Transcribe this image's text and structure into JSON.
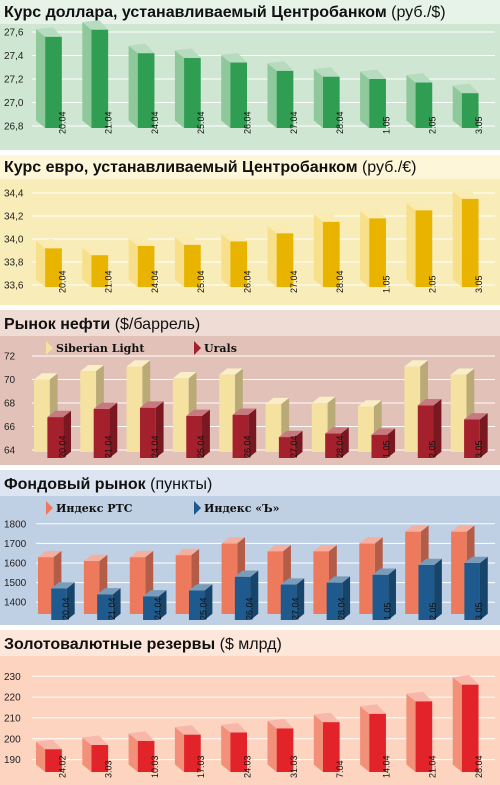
{
  "charts": [
    {
      "id": "usd",
      "title_main": "Курс доллара, устанавливаемый Центробанком",
      "title_unit": "(руб./$)",
      "bg": "#cfe6d2",
      "title_bg": "#e7f3e8",
      "y_ticks": [
        "26,8",
        "27,0",
        "27,2",
        "27,4",
        "27,6"
      ],
      "colors": [
        "#2f9e52",
        "#8fc89b"
      ]
    },
    {
      "id": "eur",
      "title_main": "Курс евро, устанавливаемый Центробанком",
      "title_unit": "(руб./€)",
      "bg": "#f8ecb8",
      "title_bg": "#fdf6d8",
      "y_ticks": [
        "33,6",
        "33,8",
        "34,0",
        "34,2",
        "34,4"
      ],
      "colors": [
        "#e8b400",
        "#f8e08a"
      ]
    },
    {
      "id": "oil",
      "title_main": "Рынок нефти",
      "title_unit": "($/баррель)",
      "bg": "#e2c2b8",
      "title_bg": "#efdcd4",
      "y_ticks": [
        "64",
        "66",
        "68",
        "70",
        "72"
      ],
      "colors": [
        "#f6e2a0",
        "#a3202c"
      ]
    },
    {
      "id": "stock",
      "title_main": "Фондовый рынок",
      "title_unit": "(пункты)",
      "bg": "#bfcfe4",
      "title_bg": "#dce5f1",
      "y_ticks": [
        "1400",
        "1500",
        "1600",
        "1700",
        "1800"
      ],
      "colors": [
        "#ee7a5e",
        "#1f5a8e"
      ]
    },
    {
      "id": "reserves",
      "title_main": "Золотовалютные резервы",
      "title_unit": "($ млрд)",
      "bg": "#fcd4c0",
      "title_bg": "#fde6da",
      "y_ticks": [
        "190",
        "200",
        "210",
        "220",
        "230"
      ],
      "colors": [
        "#e2232a",
        "#f2907a"
      ]
    }
  ],
  "chart_data": [
    {
      "type": "bar",
      "categories": [
        "20.04",
        "21.04",
        "24.04",
        "25.04",
        "26.04",
        "27.04",
        "28.04",
        "1.05",
        "2.05",
        "3.05"
      ],
      "values": [
        27.56,
        27.62,
        27.42,
        27.38,
        27.34,
        27.27,
        27.22,
        27.2,
        27.17,
        27.08
      ],
      "ylim": [
        26.8,
        27.6
      ]
    },
    {
      "type": "bar",
      "categories": [
        "20.04",
        "21.04",
        "24.04",
        "25.04",
        "26.04",
        "27.04",
        "28.04",
        "1.05",
        "2.05",
        "3.05"
      ],
      "values": [
        33.92,
        33.86,
        33.94,
        33.95,
        33.98,
        34.05,
        34.15,
        34.18,
        34.25,
        34.35
      ],
      "ylim": [
        33.6,
        34.4
      ]
    },
    {
      "type": "bar",
      "categories": [
        "20.04",
        "21.04",
        "24.04",
        "25.04",
        "26.04",
        "27.04",
        "28.04",
        "1.05",
        "2.05",
        "3.05"
      ],
      "series": [
        {
          "name": "Siberian Light",
          "values": [
            70.0,
            70.7,
            71.1,
            70.1,
            70.4,
            67.9,
            68.0,
            67.7,
            71.1,
            70.4
          ]
        },
        {
          "name": "Urals",
          "values": [
            66.8,
            67.5,
            67.6,
            66.9,
            67.0,
            65.1,
            65.4,
            65.3,
            67.8,
            66.6
          ]
        }
      ],
      "ylim": [
        64,
        72
      ]
    },
    {
      "type": "bar",
      "categories": [
        "20.04",
        "21.04",
        "24.04",
        "25.04",
        "26.04",
        "27.04",
        "28.04",
        "1.05",
        "2.05",
        "3.05"
      ],
      "series": [
        {
          "name": "Индекс РТС",
          "values": [
            1630,
            1610,
            1630,
            1640,
            1700,
            1660,
            1660,
            1700,
            1760,
            1760
          ]
        },
        {
          "name": "Индекс «Ъ»",
          "values": [
            1470,
            1440,
            1430,
            1460,
            1530,
            1490,
            1500,
            1540,
            1590,
            1600
          ]
        }
      ],
      "ylim": [
        1350,
        1850
      ]
    },
    {
      "type": "bar",
      "categories": [
        "24.02",
        "3.03",
        "10.03",
        "17.03",
        "24.03",
        "31.03",
        "7.04",
        "14.04",
        "21.04",
        "28.04"
      ],
      "values": [
        195,
        197,
        199,
        202,
        203,
        205,
        208,
        212,
        218,
        226
      ],
      "ylim": [
        185,
        233
      ]
    }
  ]
}
